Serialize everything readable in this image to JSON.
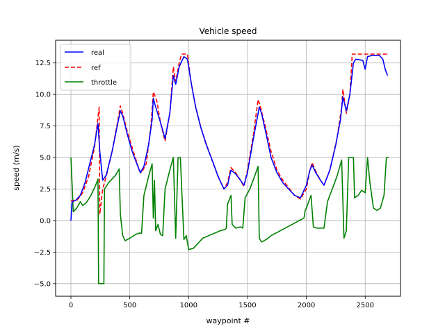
{
  "chart_data": {
    "type": "line",
    "title": "Vehicle speed",
    "xlabel": "waypoint #",
    "ylabel": "speed (m/s)",
    "xlim": [
      -130,
      2800
    ],
    "ylim": [
      -6,
      14.3
    ],
    "xticks": [
      0,
      500,
      1000,
      1500,
      2000,
      2500
    ],
    "xtick_labels": [
      "0",
      "500",
      "1000",
      "1500",
      "2000",
      "2500"
    ],
    "yticks": [
      -5.0,
      -2.5,
      0.0,
      2.5,
      5.0,
      7.5,
      10.0,
      12.5
    ],
    "ytick_labels": [
      "−5.0",
      "−2.5",
      "0.0",
      "2.5",
      "5.0",
      "7.5",
      "10.0",
      "12.5"
    ],
    "grid": true,
    "legend_position": "top-left",
    "series": [
      {
        "name": "real",
        "color": "#0000ff",
        "style": "solid",
        "points": [
          [
            0,
            0
          ],
          [
            10,
            1.5
          ],
          [
            40,
            1.6
          ],
          [
            80,
            2.0
          ],
          [
            120,
            3.0
          ],
          [
            160,
            4.5
          ],
          [
            200,
            6.0
          ],
          [
            230,
            7.7
          ],
          [
            245,
            5.5
          ],
          [
            270,
            3.2
          ],
          [
            300,
            3.6
          ],
          [
            350,
            5.5
          ],
          [
            400,
            7.8
          ],
          [
            420,
            8.7
          ],
          [
            440,
            8.3
          ],
          [
            480,
            6.8
          ],
          [
            520,
            5.5
          ],
          [
            560,
            4.5
          ],
          [
            590,
            3.8
          ],
          [
            620,
            4.3
          ],
          [
            660,
            6.0
          ],
          [
            690,
            8.0
          ],
          [
            700,
            9.7
          ],
          [
            720,
            9.0
          ],
          [
            760,
            7.8
          ],
          [
            800,
            6.5
          ],
          [
            840,
            8.5
          ],
          [
            870,
            11.5
          ],
          [
            890,
            10.8
          ],
          [
            920,
            12.2
          ],
          [
            960,
            13.0
          ],
          [
            990,
            12.8
          ],
          [
            1020,
            11.0
          ],
          [
            1060,
            9.0
          ],
          [
            1100,
            7.5
          ],
          [
            1150,
            6.0
          ],
          [
            1200,
            4.8
          ],
          [
            1250,
            3.5
          ],
          [
            1300,
            2.5
          ],
          [
            1330,
            2.8
          ],
          [
            1360,
            4.0
          ],
          [
            1400,
            3.7
          ],
          [
            1440,
            3.2
          ],
          [
            1470,
            2.8
          ],
          [
            1500,
            3.8
          ],
          [
            1550,
            6.5
          ],
          [
            1590,
            8.5
          ],
          [
            1600,
            9.0
          ],
          [
            1620,
            8.5
          ],
          [
            1660,
            6.8
          ],
          [
            1700,
            5.0
          ],
          [
            1750,
            3.8
          ],
          [
            1800,
            3.0
          ],
          [
            1850,
            2.5
          ],
          [
            1900,
            2.0
          ],
          [
            1950,
            1.8
          ],
          [
            2000,
            2.8
          ],
          [
            2030,
            4.0
          ],
          [
            2050,
            4.4
          ],
          [
            2080,
            3.8
          ],
          [
            2120,
            3.2
          ],
          [
            2150,
            2.8
          ],
          [
            2200,
            4.0
          ],
          [
            2250,
            6.0
          ],
          [
            2290,
            8.0
          ],
          [
            2310,
            9.8
          ],
          [
            2340,
            8.7
          ],
          [
            2370,
            10.0
          ],
          [
            2400,
            12.5
          ],
          [
            2420,
            12.8
          ],
          [
            2480,
            12.7
          ],
          [
            2500,
            12.0
          ],
          [
            2520,
            13.0
          ],
          [
            2560,
            13.1
          ],
          [
            2620,
            13.1
          ],
          [
            2650,
            12.8
          ],
          [
            2670,
            12.0
          ],
          [
            2690,
            11.5
          ]
        ]
      },
      {
        "name": "ref",
        "color": "#ff0000",
        "style": "dashed",
        "points": [
          [
            0,
            1.6
          ],
          [
            50,
            1.6
          ],
          [
            100,
            2.2
          ],
          [
            150,
            3.5
          ],
          [
            200,
            5.8
          ],
          [
            240,
            9.0
          ],
          [
            245,
            0.5
          ],
          [
            270,
            2.5
          ],
          [
            300,
            3.5
          ],
          [
            350,
            5.5
          ],
          [
            400,
            8.0
          ],
          [
            420,
            9.1
          ],
          [
            440,
            8.5
          ],
          [
            480,
            7.0
          ],
          [
            530,
            5.5
          ],
          [
            580,
            4.0
          ],
          [
            600,
            3.8
          ],
          [
            640,
            4.5
          ],
          [
            680,
            7.5
          ],
          [
            700,
            10.2
          ],
          [
            730,
            9.5
          ],
          [
            760,
            7.8
          ],
          [
            800,
            6.3
          ],
          [
            840,
            8.5
          ],
          [
            870,
            12.2
          ],
          [
            890,
            11.0
          ],
          [
            920,
            12.5
          ],
          [
            940,
            13.2
          ],
          [
            990,
            13.2
          ],
          [
            1020,
            11.0
          ],
          [
            1060,
            9.0
          ],
          [
            1110,
            7.2
          ],
          [
            1160,
            5.8
          ],
          [
            1210,
            4.5
          ],
          [
            1260,
            3.3
          ],
          [
            1300,
            2.5
          ],
          [
            1330,
            3.0
          ],
          [
            1360,
            4.2
          ],
          [
            1400,
            3.8
          ],
          [
            1440,
            3.2
          ],
          [
            1470,
            2.7
          ],
          [
            1500,
            4.0
          ],
          [
            1550,
            6.8
          ],
          [
            1590,
            9.6
          ],
          [
            1610,
            9.0
          ],
          [
            1650,
            7.5
          ],
          [
            1700,
            5.5
          ],
          [
            1750,
            4.0
          ],
          [
            1800,
            3.2
          ],
          [
            1850,
            2.6
          ],
          [
            1900,
            2.0
          ],
          [
            1950,
            1.7
          ],
          [
            2000,
            2.5
          ],
          [
            2030,
            4.0
          ],
          [
            2050,
            4.6
          ],
          [
            2080,
            3.9
          ],
          [
            2120,
            3.2
          ],
          [
            2150,
            2.8
          ],
          [
            2200,
            4.0
          ],
          [
            2260,
            6.5
          ],
          [
            2300,
            9.0
          ],
          [
            2310,
            10.4
          ],
          [
            2340,
            8.5
          ],
          [
            2370,
            10.0
          ],
          [
            2390,
            13.2
          ],
          [
            2700,
            13.2
          ]
        ]
      },
      {
        "name": "throttle",
        "color": "#008000",
        "style": "solid",
        "points": [
          [
            0,
            5.0
          ],
          [
            20,
            0.7
          ],
          [
            50,
            1.0
          ],
          [
            80,
            1.5
          ],
          [
            100,
            1.2
          ],
          [
            130,
            1.4
          ],
          [
            170,
            2.0
          ],
          [
            210,
            2.8
          ],
          [
            230,
            3.3
          ],
          [
            235,
            -5.0
          ],
          [
            280,
            -5.0
          ],
          [
            285,
            2.5
          ],
          [
            320,
            3.0
          ],
          [
            380,
            3.6
          ],
          [
            410,
            4.1
          ],
          [
            420,
            0.5
          ],
          [
            440,
            -1.2
          ],
          [
            460,
            -1.6
          ],
          [
            500,
            -1.4
          ],
          [
            550,
            -1.1
          ],
          [
            580,
            -1.0
          ],
          [
            600,
            -1.0
          ],
          [
            620,
            2.0
          ],
          [
            660,
            3.5
          ],
          [
            690,
            4.5
          ],
          [
            700,
            0.2
          ],
          [
            710,
            3.2
          ],
          [
            720,
            -0.8
          ],
          [
            740,
            -0.3
          ],
          [
            760,
            -1.1
          ],
          [
            780,
            -1.2
          ],
          [
            800,
            2.5
          ],
          [
            840,
            4.0
          ],
          [
            870,
            5.0
          ],
          [
            890,
            -1.4
          ],
          [
            910,
            5.0
          ],
          [
            930,
            5.0
          ],
          [
            960,
            -1.5
          ],
          [
            980,
            -1.2
          ],
          [
            1000,
            -2.3
          ],
          [
            1040,
            -2.2
          ],
          [
            1080,
            -1.8
          ],
          [
            1120,
            -1.4
          ],
          [
            1170,
            -1.2
          ],
          [
            1220,
            -1.0
          ],
          [
            1270,
            -0.8
          ],
          [
            1310,
            -0.7
          ],
          [
            1320,
            -0.6
          ],
          [
            1330,
            1.3
          ],
          [
            1360,
            2.0
          ],
          [
            1370,
            -0.3
          ],
          [
            1400,
            -0.6
          ],
          [
            1440,
            -0.5
          ],
          [
            1460,
            -0.6
          ],
          [
            1480,
            1.8
          ],
          [
            1520,
            2.5
          ],
          [
            1560,
            3.5
          ],
          [
            1590,
            4.3
          ],
          [
            1600,
            -1.4
          ],
          [
            1620,
            -1.7
          ],
          [
            1660,
            -1.5
          ],
          [
            1700,
            -1.2
          ],
          [
            1760,
            -0.9
          ],
          [
            1820,
            -0.6
          ],
          [
            1880,
            -0.3
          ],
          [
            1940,
            0.0
          ],
          [
            1980,
            0.2
          ],
          [
            1990,
            0.8
          ],
          [
            2000,
            1.0
          ],
          [
            2020,
            1.5
          ],
          [
            2040,
            2.0
          ],
          [
            2060,
            -0.5
          ],
          [
            2090,
            -0.6
          ],
          [
            2120,
            -0.6
          ],
          [
            2150,
            -0.6
          ],
          [
            2180,
            1.5
          ],
          [
            2220,
            2.5
          ],
          [
            2260,
            3.5
          ],
          [
            2300,
            4.8
          ],
          [
            2320,
            -1.4
          ],
          [
            2340,
            -0.8
          ],
          [
            2360,
            5.0
          ],
          [
            2400,
            5.0
          ],
          [
            2410,
            1.8
          ],
          [
            2440,
            2.0
          ],
          [
            2470,
            2.4
          ],
          [
            2500,
            2.2
          ],
          [
            2520,
            5.0
          ],
          [
            2540,
            3.0
          ],
          [
            2570,
            1.0
          ],
          [
            2600,
            0.8
          ],
          [
            2630,
            1.0
          ],
          [
            2660,
            2.0
          ],
          [
            2680,
            5.0
          ],
          [
            2700,
            5.0
          ]
        ]
      }
    ]
  }
}
